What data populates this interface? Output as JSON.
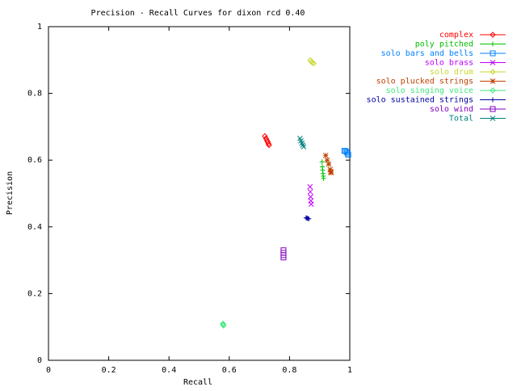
{
  "chart_data": {
    "type": "scatter",
    "title": "Precision - Recall Curves for dixon rcd 0.40",
    "x_label": "Recall",
    "y_label": "Precision",
    "xlim": [
      0,
      1
    ],
    "ylim": [
      0,
      1
    ],
    "xticks": [
      0,
      0.2,
      0.4,
      0.6,
      0.8,
      1
    ],
    "yticks": [
      0,
      0.2,
      0.4,
      0.6,
      0.8,
      1
    ],
    "legend": "outside-top-right",
    "series": [
      {
        "name": "complex",
        "color": "#ff0000",
        "x": [
          0.718,
          0.722,
          0.725,
          0.728,
          0.73,
          0.732
        ],
        "values": [
          0.672,
          0.665,
          0.659,
          0.654,
          0.649,
          0.645
        ]
      },
      {
        "name": "poly pitched",
        "color": "#00c000",
        "x": [
          0.908,
          0.909,
          0.91,
          0.911,
          0.912,
          0.913
        ],
        "values": [
          0.595,
          0.58,
          0.57,
          0.56,
          0.552,
          0.545
        ]
      },
      {
        "name": "solo bars and bells",
        "color": "#0080ff",
        "x": [
          0.982,
          0.986,
          0.99,
          0.993,
          0.995
        ],
        "values": [
          0.628,
          0.627,
          0.624,
          0.62,
          0.616
        ]
      },
      {
        "name": "solo brass",
        "color": "#c000ff",
        "x": [
          0.868,
          0.869,
          0.87,
          0.871,
          0.872
        ],
        "values": [
          0.52,
          0.505,
          0.49,
          0.478,
          0.468
        ]
      },
      {
        "name": "solo drum",
        "color": "#c8d830",
        "x": [
          0.869,
          0.872,
          0.876,
          0.88
        ],
        "values": [
          0.9,
          0.895,
          0.892,
          0.89
        ]
      },
      {
        "name": "solo plucked strings",
        "color": "#c04000",
        "x": [
          0.92,
          0.925,
          0.93,
          0.935,
          0.937,
          0.938
        ],
        "values": [
          0.614,
          0.6,
          0.588,
          0.572,
          0.565,
          0.562
        ]
      },
      {
        "name": "solo singing voice",
        "color": "#40e880",
        "x": [
          0.579,
          0.58,
          0.581
        ],
        "values": [
          0.11,
          0.107,
          0.104
        ]
      },
      {
        "name": "solo sustained strings",
        "color": "#0000a0",
        "x": [
          0.855,
          0.858,
          0.861,
          0.864
        ],
        "values": [
          0.427,
          0.426,
          0.425,
          0.424
        ]
      },
      {
        "name": "solo wind",
        "color": "#8000c0",
        "x": [
          0.78,
          0.78,
          0.78,
          0.78
        ],
        "values": [
          0.33,
          0.322,
          0.315,
          0.308
        ]
      },
      {
        "name": "Total",
        "color": "#008080",
        "x": [
          0.835,
          0.838,
          0.841,
          0.844,
          0.847
        ],
        "values": [
          0.665,
          0.658,
          0.651,
          0.645,
          0.64
        ]
      }
    ]
  }
}
